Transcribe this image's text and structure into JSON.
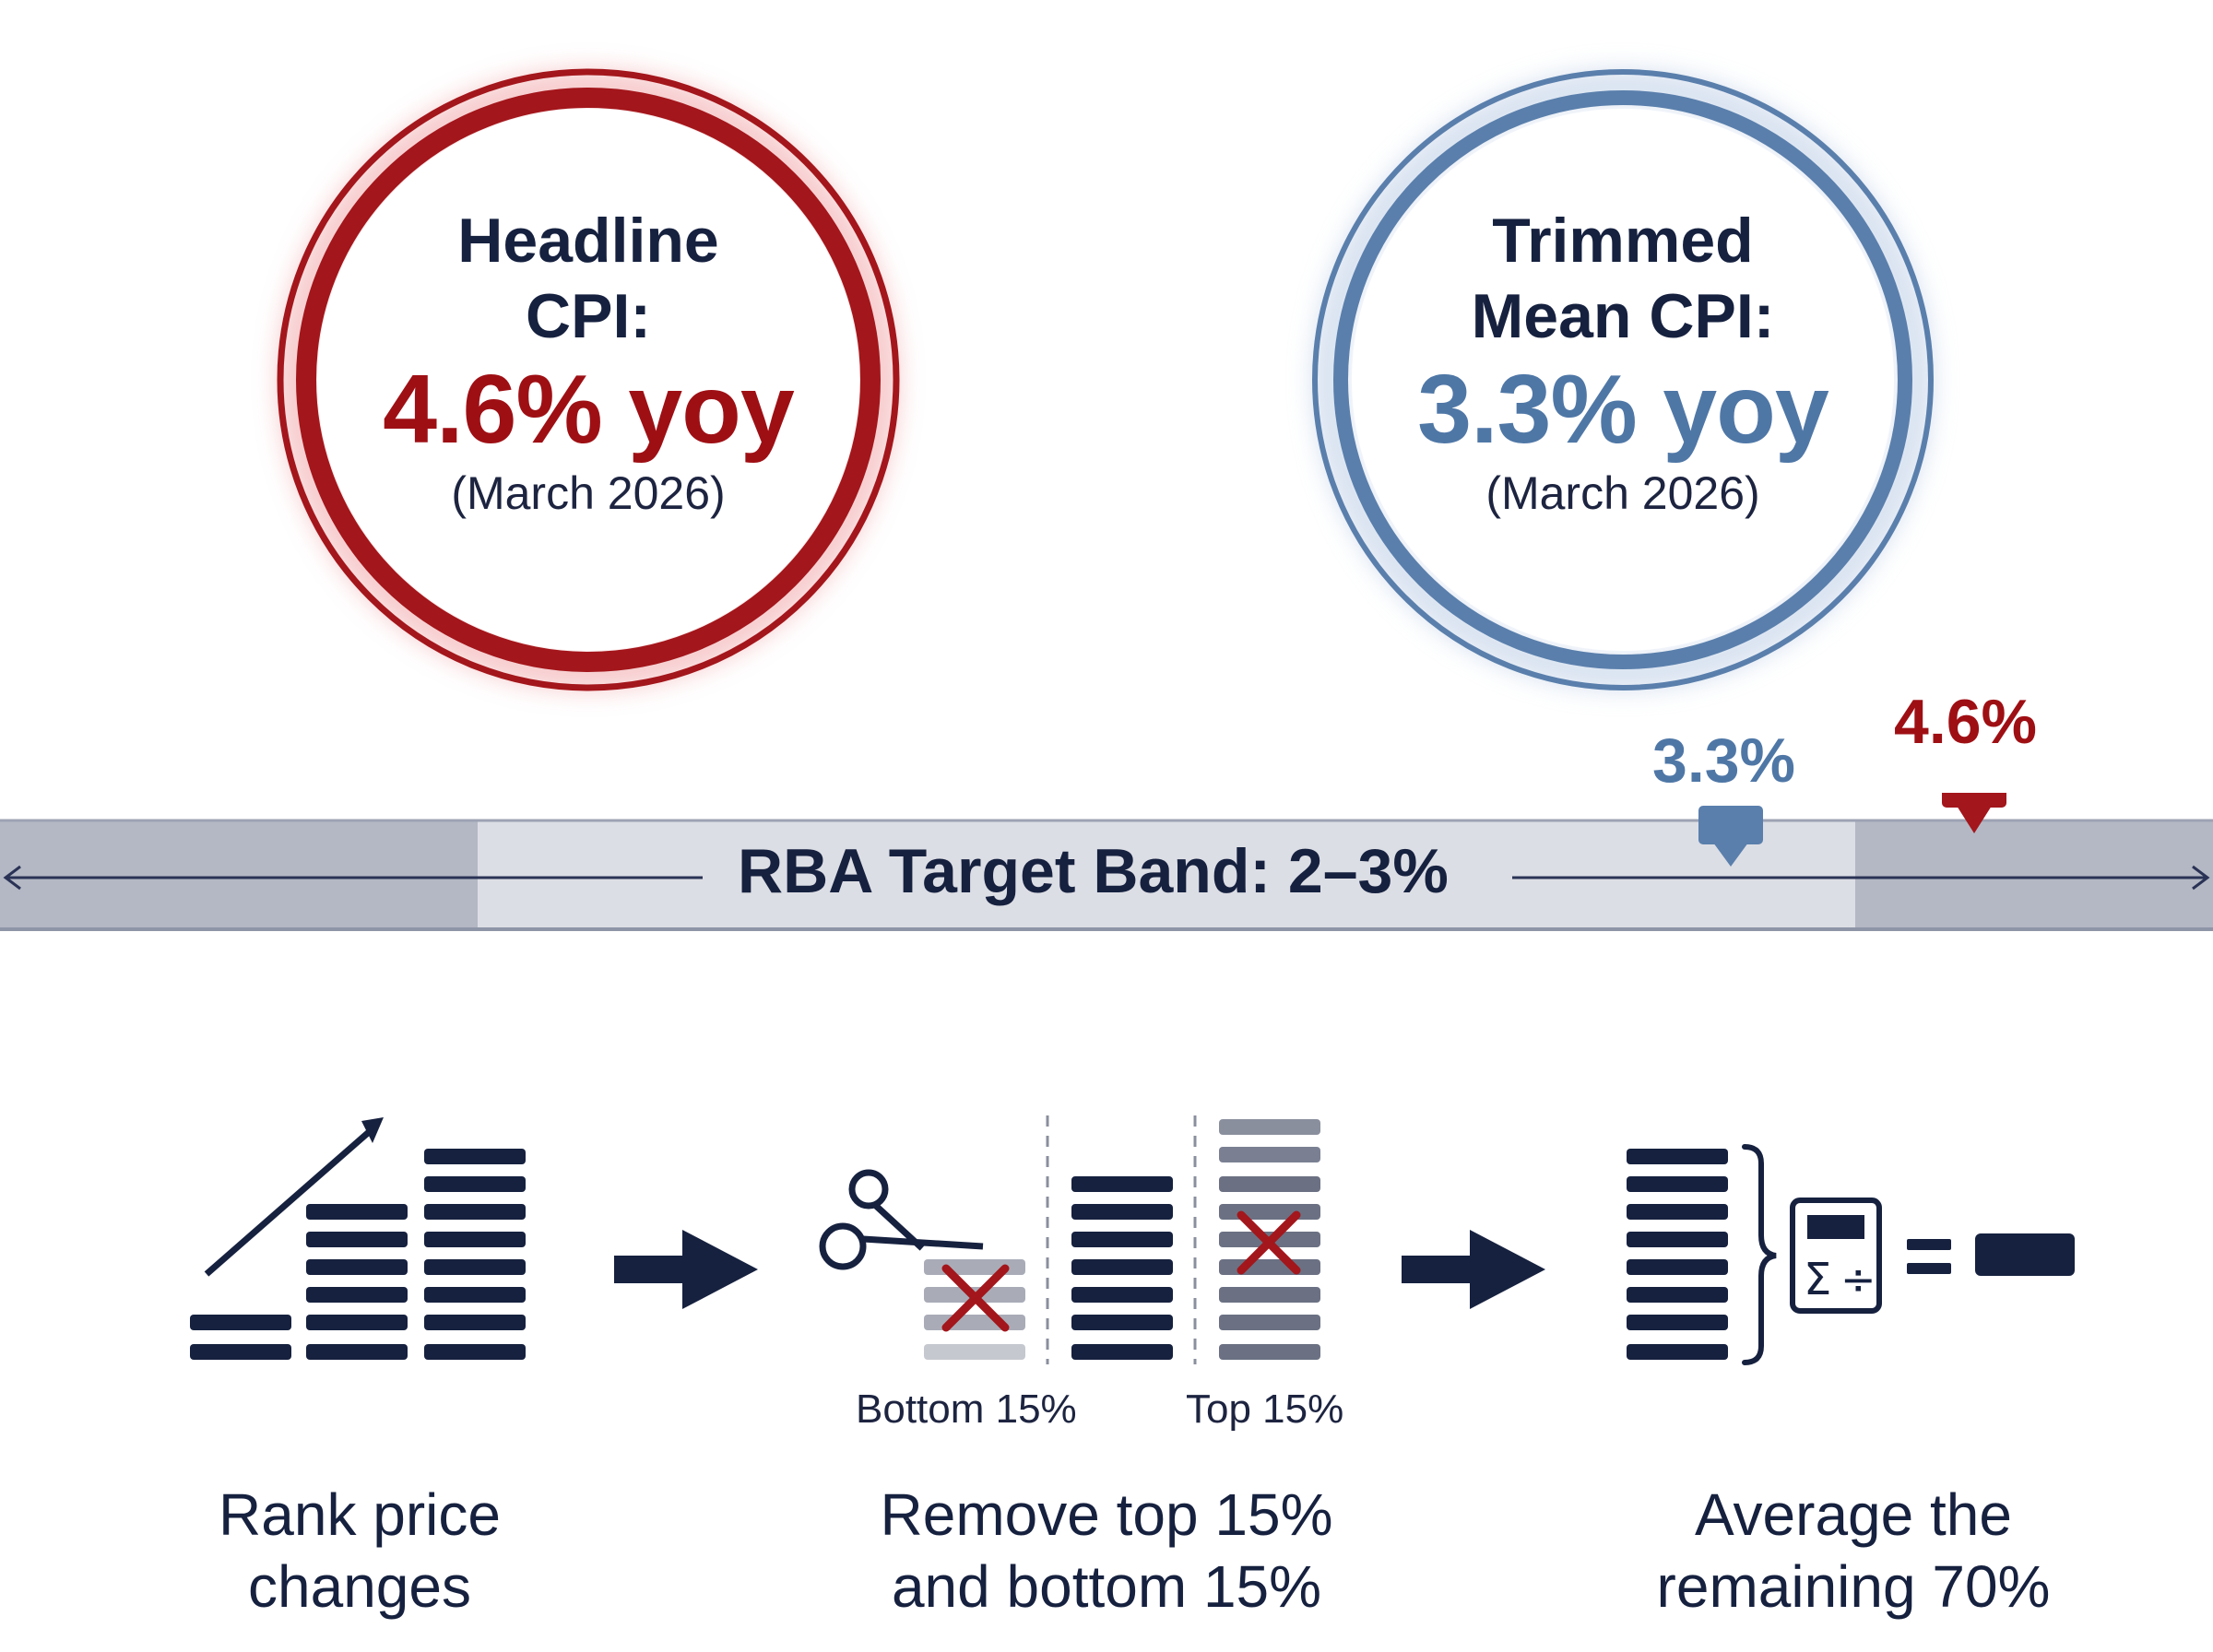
{
  "headline": {
    "title_line1": "Headline",
    "title_line2": "CPI:",
    "value": "4.6% yoy",
    "date": "(March 2026)",
    "color": "#9e0f14"
  },
  "trimmed": {
    "title_line1": "Trimmed",
    "title_line2": "Mean CPI:",
    "value": "3.3% yoy",
    "date": "(March 2026)",
    "color": "#4f77a6"
  },
  "band": {
    "label": "RBA Target Band: 2–3%",
    "trimmed_marker": "3.3%",
    "headline_marker": "4.6%"
  },
  "steps": {
    "step1": {
      "line1": "Rank price",
      "line2": "changes"
    },
    "step2": {
      "line1": "Remove top 15%",
      "line2": "and bottom 15%",
      "bottom_label": "Bottom 15%",
      "top_label": "Top 15%"
    },
    "step3": {
      "line1": "Average the",
      "line2": "remaining 70%"
    }
  },
  "icons": [
    "trend-arrow-icon",
    "scissors-icon",
    "cross-icon",
    "arrow-right-icon",
    "brace-icon",
    "calculator-icon",
    "equals-icon"
  ]
}
